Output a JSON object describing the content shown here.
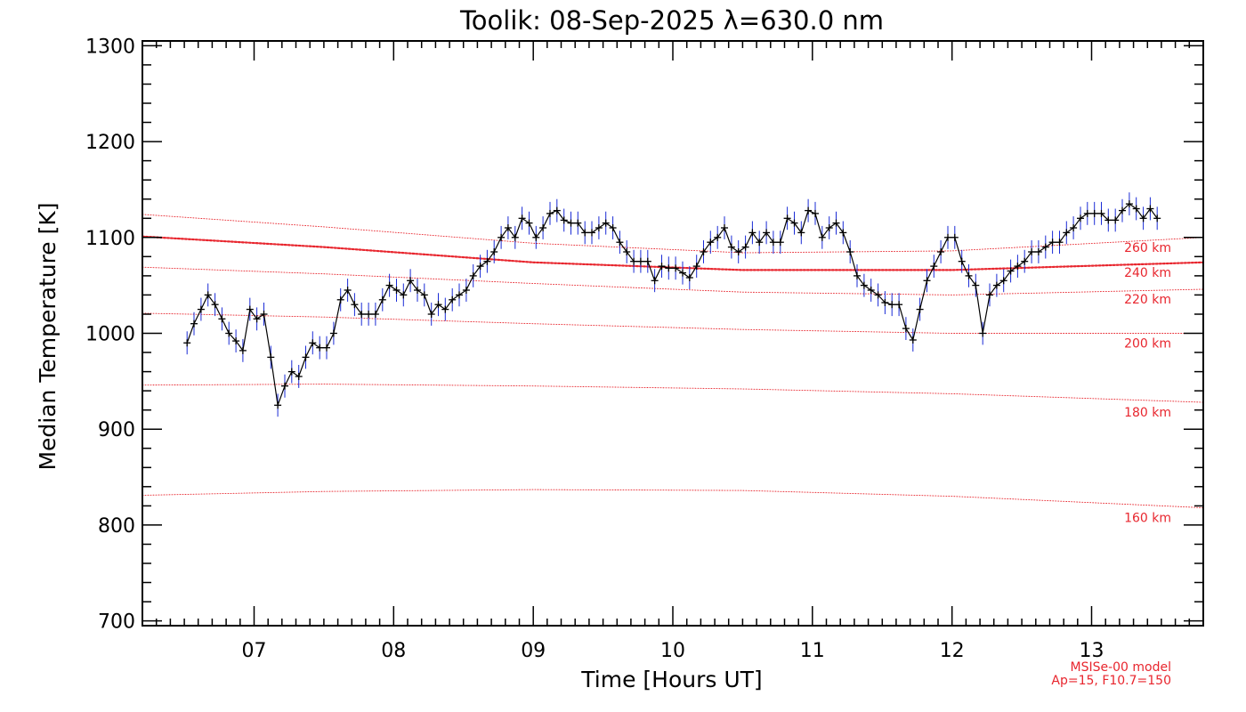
{
  "chart_data": {
    "type": "line",
    "title": "Toolik: 08-Sep-2025 λ=630.0 nm",
    "xlabel": "Time [Hours UT]",
    "ylabel": "Median Temperature [K]",
    "xlim": [
      6.2,
      13.8
    ],
    "ylim": [
      695,
      1305
    ],
    "x_ticks": [
      7,
      8,
      9,
      10,
      11,
      12,
      13
    ],
    "x_tick_labels": [
      "07",
      "08",
      "09",
      "10",
      "11",
      "12",
      "13"
    ],
    "y_ticks": [
      700,
      800,
      900,
      1000,
      1100,
      1200,
      1300
    ],
    "y_tick_labels": [
      "700",
      "800",
      "900",
      "1000",
      "1100",
      "1200",
      "1300"
    ],
    "grid": false,
    "colors": {
      "data": "#000000",
      "error_bars": "#1a2bd6",
      "model": "#e8262e"
    },
    "series": [
      {
        "x": [
          6.52,
          6.57,
          6.62,
          6.67,
          6.72,
          6.77,
          6.82,
          6.87,
          6.92,
          6.97,
          7.02,
          7.07,
          7.12,
          7.17,
          7.22,
          7.27,
          7.32,
          7.37,
          7.42,
          7.47,
          7.52,
          7.57,
          7.62,
          7.67,
          7.72,
          7.77,
          7.82,
          7.87,
          7.92,
          7.97,
          8.02,
          8.07,
          8.12,
          8.17,
          8.22,
          8.27,
          8.32,
          8.37,
          8.42,
          8.47,
          8.52,
          8.57,
          8.62,
          8.67,
          8.72,
          8.77,
          8.82,
          8.87,
          8.92,
          8.97,
          9.02,
          9.07,
          9.12,
          9.17,
          9.22,
          9.27,
          9.32,
          9.37,
          9.42,
          9.47,
          9.52,
          9.57,
          9.62,
          9.67,
          9.72,
          9.77,
          9.82,
          9.87,
          9.92,
          9.97,
          10.02,
          10.07,
          10.12,
          10.17,
          10.22,
          10.27,
          10.32,
          10.37,
          10.42,
          10.47,
          10.52,
          10.57,
          10.62,
          10.67,
          10.72,
          10.77,
          10.82,
          10.87,
          10.92,
          10.97,
          11.02,
          11.07,
          11.12,
          11.17,
          11.22,
          11.27,
          11.32,
          11.37,
          11.42,
          11.47,
          11.52,
          11.57,
          11.62,
          11.67,
          11.72,
          11.77,
          11.82,
          11.87,
          11.92,
          11.97,
          12.02,
          12.07,
          12.12,
          12.17,
          12.22,
          12.27,
          12.32,
          12.37,
          12.42,
          12.47,
          12.52,
          12.57,
          12.62,
          12.67,
          12.72,
          12.77,
          12.82,
          12.87,
          12.92,
          12.97,
          13.02,
          13.07,
          13.12,
          13.17,
          13.22,
          13.27,
          13.32,
          13.37,
          13.42,
          13.47
        ],
        "values": [
          990,
          1010,
          1025,
          1040,
          1030,
          1015,
          1000,
          992,
          982,
          1025,
          1015,
          1020,
          975,
          925,
          945,
          960,
          955,
          975,
          990,
          985,
          985,
          1000,
          1035,
          1045,
          1030,
          1020,
          1020,
          1020,
          1035,
          1050,
          1045,
          1040,
          1055,
          1045,
          1040,
          1020,
          1030,
          1025,
          1035,
          1040,
          1045,
          1060,
          1070,
          1075,
          1085,
          1100,
          1110,
          1100,
          1120,
          1115,
          1100,
          1110,
          1125,
          1128,
          1118,
          1115,
          1115,
          1105,
          1105,
          1110,
          1115,
          1110,
          1095,
          1085,
          1075,
          1075,
          1075,
          1055,
          1070,
          1068,
          1068,
          1063,
          1058,
          1070,
          1085,
          1095,
          1100,
          1110,
          1090,
          1085,
          1090,
          1105,
          1095,
          1105,
          1095,
          1095,
          1120,
          1115,
          1105,
          1128,
          1125,
          1100,
          1110,
          1115,
          1105,
          1085,
          1060,
          1050,
          1045,
          1040,
          1032,
          1030,
          1030,
          1005,
          993,
          1025,
          1055,
          1070,
          1085,
          1100,
          1100,
          1075,
          1060,
          1050,
          1000,
          1040,
          1050,
          1055,
          1065,
          1070,
          1075,
          1085,
          1085,
          1090,
          1095,
          1095,
          1105,
          1110,
          1120,
          1125,
          1125,
          1125,
          1118,
          1118,
          1128,
          1135,
          1130,
          1120,
          1130,
          1120
        ],
        "errors": [
          12,
          12,
          12,
          12,
          12,
          12,
          12,
          12,
          12,
          12,
          12,
          12,
          12,
          12,
          12,
          12,
          12,
          12,
          12,
          12,
          12,
          12,
          12,
          12,
          12,
          12,
          12,
          12,
          12,
          12,
          12,
          12,
          12,
          12,
          12,
          12,
          12,
          12,
          12,
          12,
          12,
          12,
          12,
          12,
          12,
          12,
          12,
          12,
          12,
          12,
          12,
          12,
          12,
          12,
          12,
          12,
          12,
          12,
          12,
          12,
          12,
          12,
          12,
          12,
          12,
          12,
          12,
          12,
          12,
          12,
          12,
          12,
          12,
          12,
          12,
          12,
          12,
          12,
          12,
          12,
          12,
          12,
          12,
          12,
          12,
          12,
          12,
          12,
          12,
          12,
          12,
          12,
          12,
          12,
          12,
          12,
          12,
          12,
          12,
          12,
          12,
          12,
          12,
          12,
          12,
          12,
          12,
          12,
          12,
          12,
          12,
          12,
          12,
          12,
          12,
          12,
          12,
          12,
          12,
          12,
          12,
          12,
          12,
          12,
          12,
          12,
          12,
          12,
          12,
          12,
          12,
          12,
          12,
          12,
          12,
          12,
          12,
          12,
          12,
          12
        ]
      }
    ],
    "model_curves": [
      {
        "label": "160 km",
        "x": [
          6.2,
          7.5,
          9.0,
          10.5,
          12.0,
          13.8
        ],
        "values": [
          831,
          835,
          837,
          836,
          830,
          818
        ],
        "dense": false
      },
      {
        "label": "180 km",
        "x": [
          6.2,
          7.5,
          9.0,
          10.5,
          12.0,
          13.8
        ],
        "values": [
          946,
          947,
          945,
          942,
          937,
          928
        ],
        "dense": false
      },
      {
        "label": "200 km",
        "x": [
          6.2,
          7.5,
          9.0,
          10.5,
          12.0,
          13.8
        ],
        "values": [
          1021,
          1017,
          1010,
          1004,
          1000,
          1000
        ],
        "dense": false
      },
      {
        "label": "220 km",
        "x": [
          6.2,
          7.5,
          9.0,
          10.5,
          12.0,
          13.8
        ],
        "values": [
          1069,
          1062,
          1052,
          1043,
          1040,
          1046
        ],
        "dense": false
      },
      {
        "label": "240 km",
        "x": [
          6.2,
          7.5,
          9.0,
          10.5,
          12.0,
          13.8
        ],
        "values": [
          1101,
          1090,
          1074,
          1066,
          1066,
          1074
        ],
        "dense": true
      },
      {
        "label": "260 km",
        "x": [
          6.2,
          7.5,
          9.0,
          10.5,
          12.0,
          13.8
        ],
        "values": [
          1124,
          1111,
          1094,
          1084,
          1086,
          1100
        ],
        "dense": false
      }
    ],
    "model_note": [
      "MSISe-00 model",
      "Ap=15, F10.7=150"
    ]
  }
}
